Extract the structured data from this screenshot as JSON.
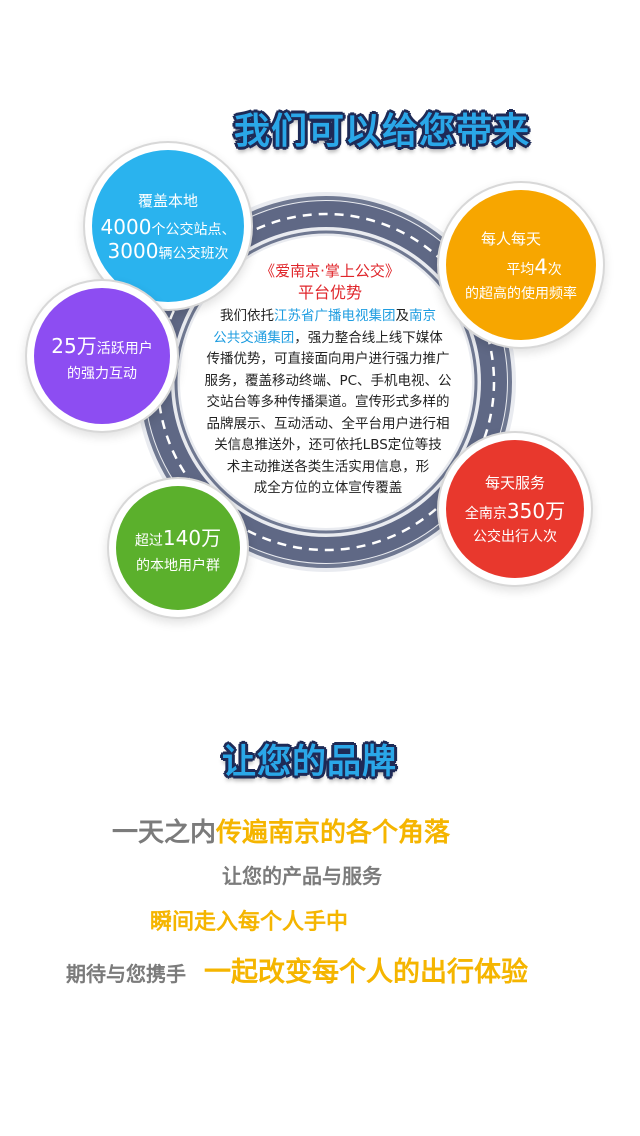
{
  "section1": {
    "title": "我们可以给您带来"
  },
  "center": {
    "heading_line1": "《爱南京·掌上公交》",
    "heading_line2": "平台优势",
    "p1": "我们依托",
    "p1_blue": "江苏省广播电视集团",
    "p1b": "及",
    "p1_blue2": "南京",
    "line2_blue": "公共交通集团",
    "line2": "，强力整合线上线下媒体",
    "line3": "传播优势，可直接面向用户进行强力推广",
    "line4": "服务，覆盖移动终端、PC、手机电视、公",
    "line5": "交站台等多种传播渠道。宣传形式多样的",
    "line6": "品牌展示、互动活动、全平台用户进行相",
    "line7": "关信息推送外，还可依托LBS定位等技",
    "line8": "术主动推送各类生活实用信息，形",
    "line9": "成全方位的立体宣传覆盖"
  },
  "bubbles": {
    "coverage": {
      "line1": "覆盖本地",
      "line2_num": "4000",
      "line2_text": "个公交站点、",
      "line3_num": "3000",
      "line3_text": "辆公交班次",
      "color": "#2ab3ee"
    },
    "frequency": {
      "line1": "每人每天",
      "line2_text": "平均",
      "line2_num": "4",
      "line2_text2": "次",
      "line3": "的超高的使用频率",
      "color": "#f7a600"
    },
    "active": {
      "line1_num": "25万",
      "line1_text": "活跃用户",
      "line2": "的强力互动",
      "color": "#8d4df2"
    },
    "daily": {
      "line1": "每天服务",
      "line2_text": "全南京",
      "line2_num": "350万",
      "line3": "公交出行人次",
      "color": "#e8382d"
    },
    "local": {
      "line1_text": "超过",
      "line1_num": "140万",
      "line2": "的本地用户群",
      "color": "#5bb02c"
    }
  },
  "section2": {
    "title": "让您的品牌",
    "line1_gray": "一天之内",
    "line1_orange": "传遍南京的各个角落",
    "line2": "让您的产品与服务",
    "line3": "瞬间走入每个人手中",
    "line4_gray": "期待与您携手",
    "line4_orange": "一起改变每个人的出行体验"
  },
  "colors": {
    "orange": "#f5b500",
    "gray": "#7b7b7b",
    "red": "#e0262b"
  }
}
